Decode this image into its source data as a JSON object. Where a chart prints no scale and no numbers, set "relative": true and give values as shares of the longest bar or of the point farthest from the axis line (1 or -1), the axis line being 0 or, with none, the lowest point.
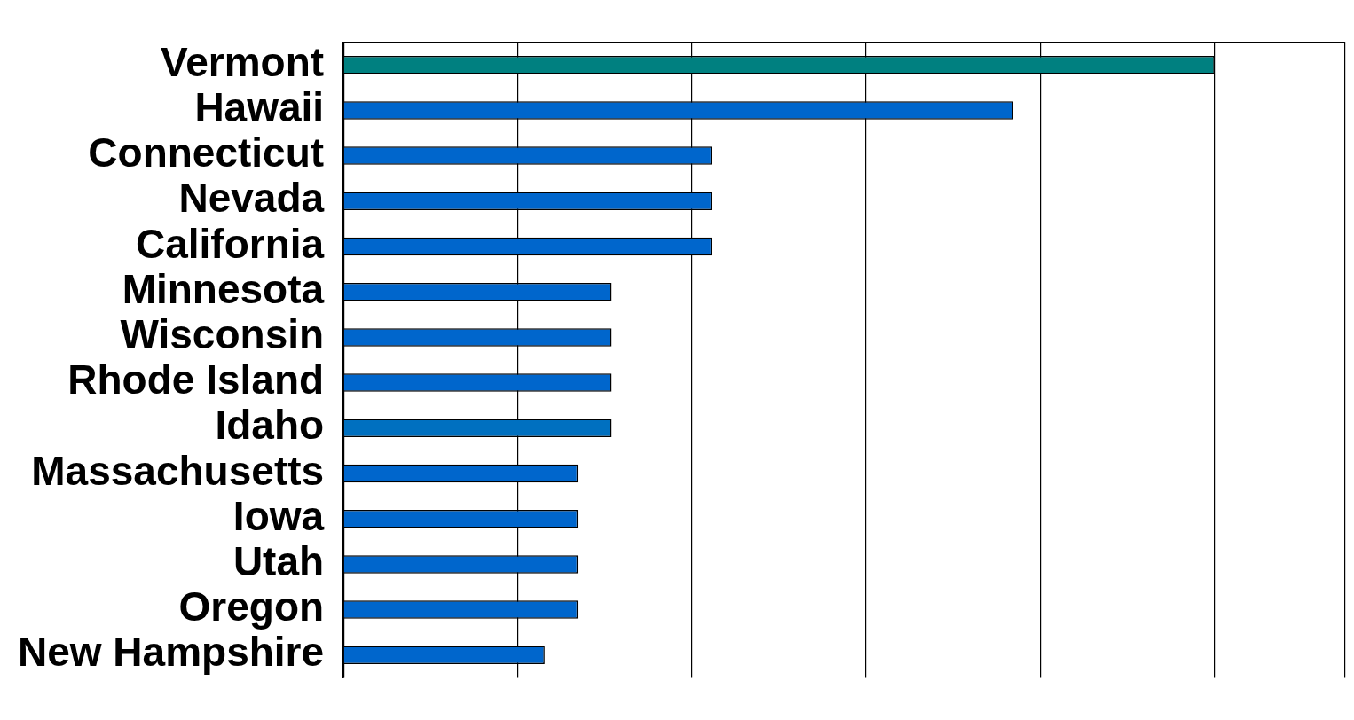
{
  "chart_data": {
    "type": "bar",
    "orientation": "horizontal",
    "relative": true,
    "grid": "x",
    "legend": false,
    "categories": [
      "Vermont",
      "Hawaii",
      "Connecticut",
      "Nevada",
      "California",
      "Minnesota",
      "Wisconsin",
      "Rhode Island",
      "Idaho",
      "Massachusetts",
      "Iowa",
      "Utah",
      "Oregon",
      "New Hampshire"
    ],
    "values": [
      1,
      0.769,
      0.423,
      0.423,
      0.423,
      0.308,
      0.308,
      0.308,
      0.308,
      0.269,
      0.269,
      0.269,
      0.269,
      0.231
    ],
    "colors": [
      "#008080",
      "#0066cc",
      "#0066cc",
      "#0066cc",
      "#0066cc",
      "#0066cc",
      "#0066cc",
      "#0066cc",
      "#0070c0",
      "#0066cc",
      "#0066cc",
      "#0066cc",
      "#0066cc",
      "#0066cc"
    ]
  }
}
